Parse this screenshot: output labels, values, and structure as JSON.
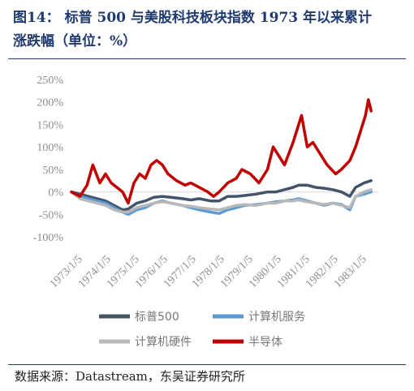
{
  "title_line1": "图14： 标普 500 与美股科技板块指数 1973 年以来累计",
  "title_line2": "涨跌幅（单位：%）",
  "source": "数据来源：Datastream，东吴证券研究所",
  "chart_data": {
    "type": "line",
    "ylim": [
      -100,
      250
    ],
    "y_ticks": [
      -100,
      -50,
      0,
      50,
      100,
      150,
      200,
      250
    ],
    "y_tick_labels": [
      "-100%",
      "-50%",
      "0%",
      "50%",
      "100%",
      "150%",
      "200%",
      "250%"
    ],
    "x_ticks": [
      1973,
      1974,
      1975,
      1976,
      1977,
      1978,
      1979,
      1980,
      1981,
      1982,
      1983
    ],
    "x_tick_labels": [
      "1973/1/5",
      "1974/1/5",
      "1975/1/5",
      "1976/1/5",
      "1977/1/5",
      "1978/1/5",
      "1979/1/5",
      "1980/1/5",
      "1981/1/5",
      "1982/1/5",
      "1983/1/5"
    ],
    "xlim": [
      1973,
      1983.8
    ],
    "legend_position": "bottom",
    "series": [
      {
        "name": "标普500",
        "color": "#44546a",
        "x": [
          1973.0,
          1973.3,
          1973.6,
          1973.9,
          1974.2,
          1974.5,
          1974.8,
          1975.0,
          1975.3,
          1975.6,
          1975.9,
          1976.2,
          1976.5,
          1976.9,
          1977.2,
          1977.5,
          1977.9,
          1978.2,
          1978.5,
          1978.8,
          1979.1,
          1979.5,
          1979.9,
          1980.2,
          1980.5,
          1980.8,
          1981.0,
          1981.3,
          1981.6,
          1981.9,
          1982.2,
          1982.5,
          1982.8,
          1983.0,
          1983.3,
          1983.55
        ],
        "y": [
          0,
          -5,
          -10,
          -15,
          -20,
          -30,
          -40,
          -38,
          -25,
          -20,
          -12,
          -10,
          -12,
          -15,
          -18,
          -15,
          -20,
          -20,
          -10,
          -10,
          -8,
          -5,
          0,
          0,
          5,
          10,
          15,
          15,
          10,
          8,
          5,
          0,
          -10,
          10,
          20,
          25
        ]
      },
      {
        "name": "计算机服务",
        "color": "#5b9bd5",
        "x": [
          1973.0,
          1973.3,
          1973.6,
          1973.9,
          1974.2,
          1974.5,
          1974.8,
          1975.0,
          1975.3,
          1975.6,
          1975.9,
          1976.2,
          1976.5,
          1976.9,
          1977.2,
          1977.5,
          1977.9,
          1978.2,
          1978.5,
          1978.8,
          1979.1,
          1979.5,
          1979.9,
          1980.2,
          1980.5,
          1980.8,
          1981.0,
          1981.3,
          1981.6,
          1981.9,
          1982.2,
          1982.5,
          1982.8,
          1983.0,
          1983.3,
          1983.55
        ],
        "y": [
          0,
          -10,
          -15,
          -20,
          -25,
          -35,
          -45,
          -50,
          -40,
          -35,
          -25,
          -20,
          -25,
          -30,
          -35,
          -40,
          -45,
          -48,
          -40,
          -35,
          -30,
          -28,
          -25,
          -22,
          -20,
          -18,
          -15,
          -20,
          -25,
          -30,
          -25,
          -28,
          -40,
          -10,
          -5,
          0
        ]
      },
      {
        "name": "计算机硬件",
        "color": "#b8b8b8",
        "x": [
          1973.0,
          1973.3,
          1973.6,
          1973.9,
          1974.2,
          1974.5,
          1974.8,
          1975.0,
          1975.3,
          1975.6,
          1975.9,
          1976.2,
          1976.5,
          1976.9,
          1977.2,
          1977.5,
          1977.9,
          1978.2,
          1978.5,
          1978.8,
          1979.1,
          1979.5,
          1979.9,
          1980.2,
          1980.5,
          1980.8,
          1981.0,
          1981.3,
          1981.6,
          1981.9,
          1982.2,
          1982.5,
          1982.8,
          1983.0,
          1983.3,
          1983.55
        ],
        "y": [
          0,
          -15,
          -20,
          -25,
          -30,
          -40,
          -45,
          -45,
          -35,
          -30,
          -25,
          -22,
          -25,
          -30,
          -32,
          -35,
          -38,
          -40,
          -35,
          -30,
          -28,
          -30,
          -25,
          -25,
          -20,
          -20,
          -18,
          -22,
          -25,
          -28,
          -25,
          -30,
          -35,
          -10,
          0,
          5
        ]
      },
      {
        "name": "半导体",
        "color": "#c00000",
        "x": [
          1973.0,
          1973.3,
          1973.55,
          1973.75,
          1974.0,
          1974.2,
          1974.4,
          1974.6,
          1974.8,
          1975.0,
          1975.2,
          1975.4,
          1975.6,
          1975.8,
          1976.0,
          1976.2,
          1976.4,
          1976.7,
          1977.0,
          1977.2,
          1977.5,
          1977.8,
          1978.0,
          1978.2,
          1978.5,
          1978.8,
          1979.0,
          1979.3,
          1979.6,
          1979.9,
          1980.1,
          1980.3,
          1980.5,
          1980.8,
          1981.0,
          1981.1,
          1981.3,
          1981.5,
          1981.8,
          1982.0,
          1982.3,
          1982.5,
          1982.8,
          1983.0,
          1983.2,
          1983.35,
          1983.45,
          1983.55
        ],
        "y": [
          0,
          -10,
          15,
          60,
          20,
          40,
          20,
          10,
          0,
          -25,
          20,
          40,
          30,
          60,
          70,
          60,
          40,
          25,
          15,
          20,
          10,
          0,
          -10,
          0,
          20,
          30,
          50,
          40,
          20,
          50,
          100,
          80,
          60,
          110,
          150,
          170,
          100,
          110,
          80,
          60,
          40,
          50,
          70,
          100,
          140,
          170,
          205,
          180
        ]
      }
    ]
  }
}
